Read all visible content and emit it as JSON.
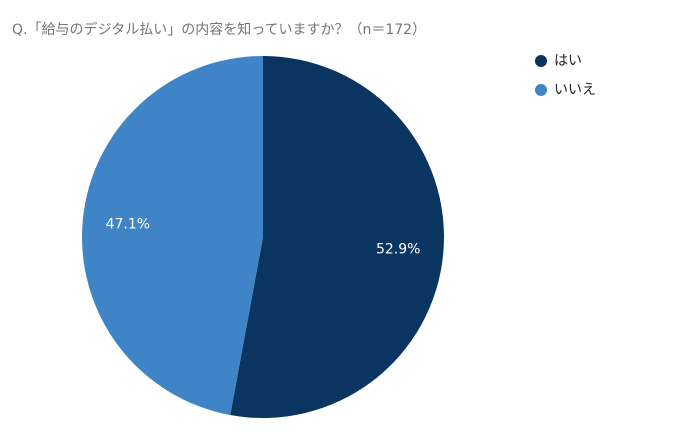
{
  "chart_data": {
    "type": "pie",
    "title": "Q.「給与のデジタル払い」の内容を知っていますか？（n＝172）",
    "categories": [
      "はい",
      "いいえ"
    ],
    "values": [
      52.9,
      47.1
    ],
    "value_labels": [
      "52.9%",
      "47.1%"
    ],
    "colors": [
      "#0a3560",
      "#3f84c6"
    ],
    "legend": "top-right"
  }
}
